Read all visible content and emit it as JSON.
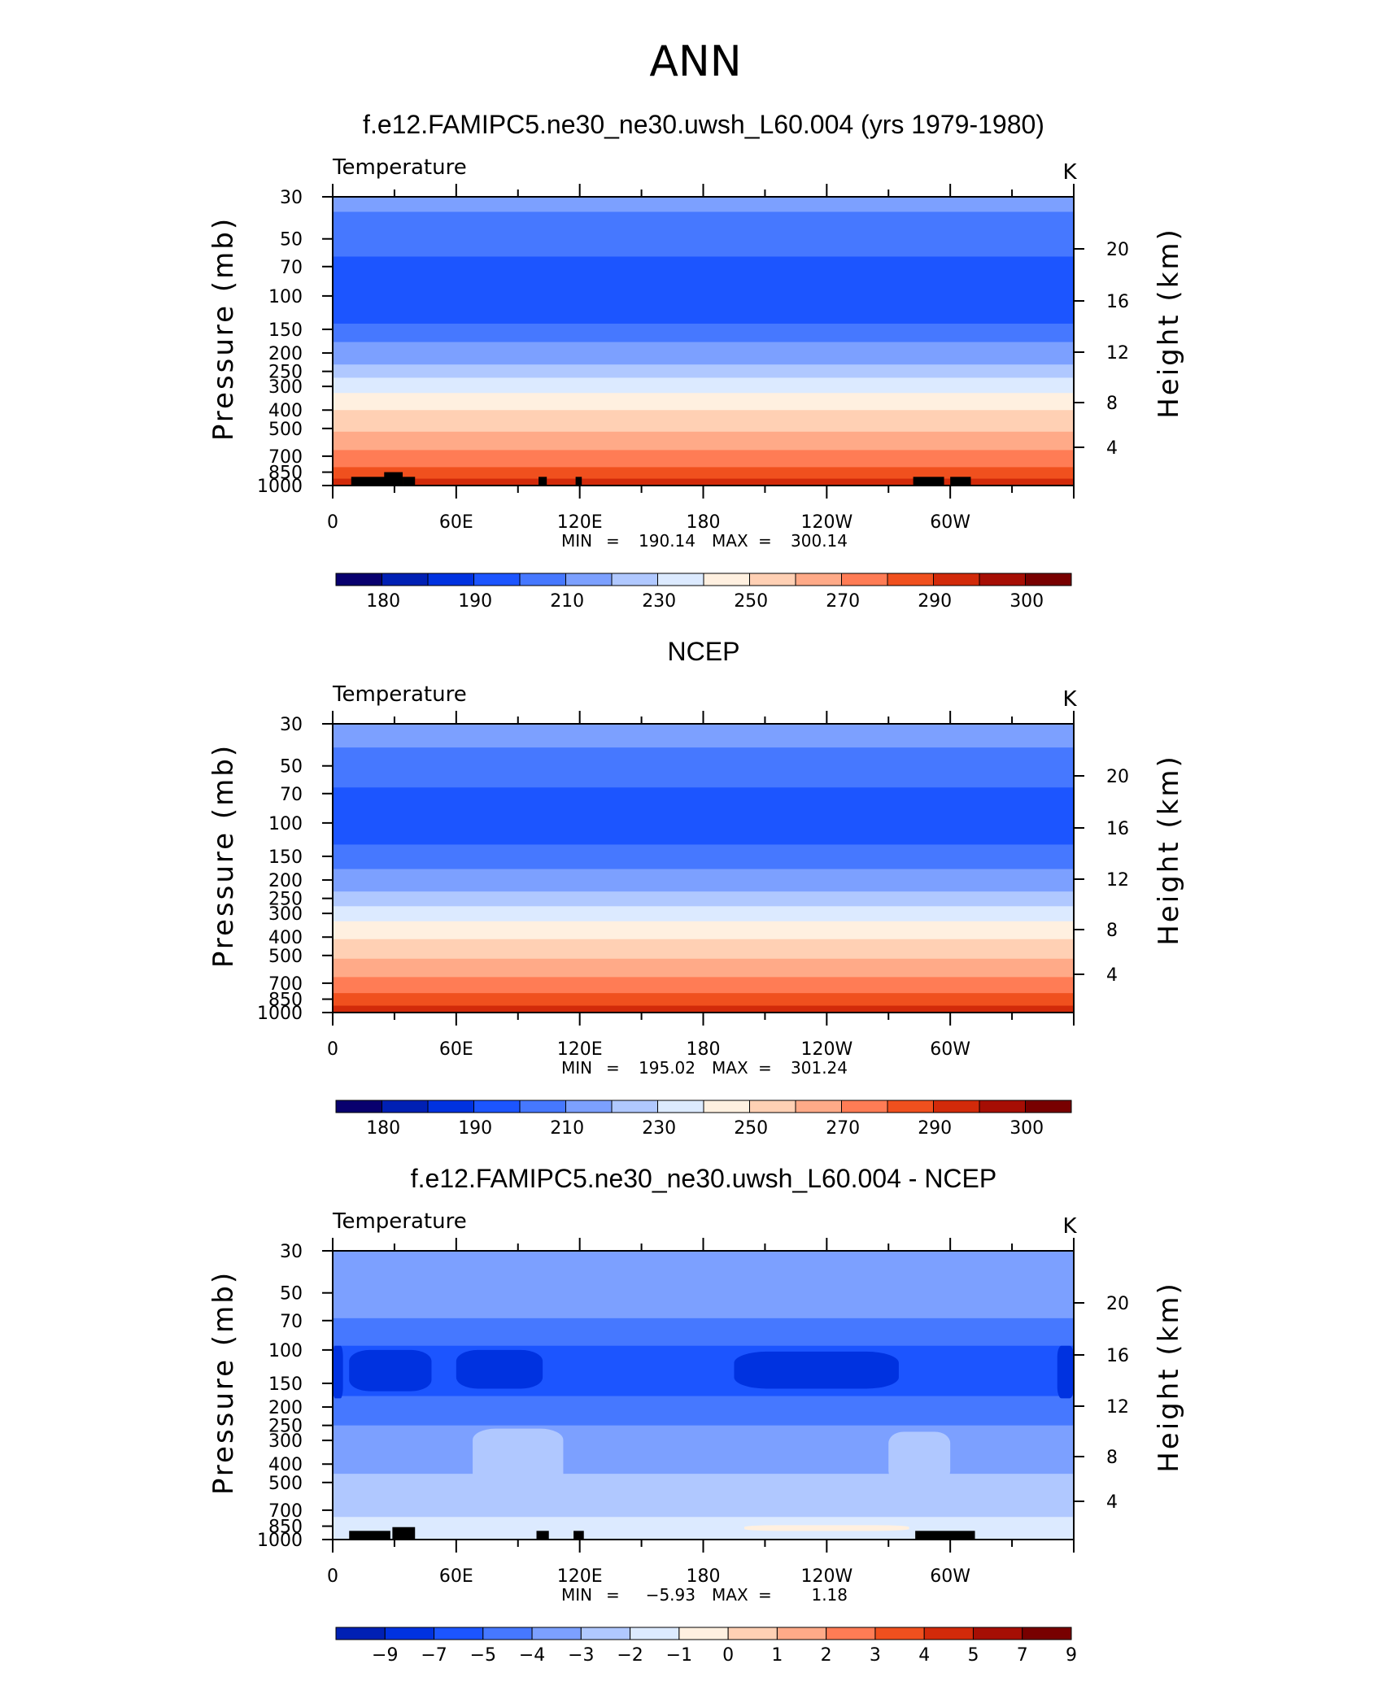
{
  "title": "ANN",
  "chart_data": [
    {
      "type": "heatmap",
      "title": "f.e12.FAMIPC5.ne30_ne30.uwsh_L60.004 (yrs 1979-1980)",
      "variable": "Temperature",
      "units": "K",
      "xlabel": "",
      "ylabel": "Pressure (mb)",
      "ylabel_right": "Height (km)",
      "x_tick_labels": [
        "0",
        "60E",
        "120E",
        "180",
        "120W",
        "60W"
      ],
      "y_tick_labels": [
        "30",
        "50",
        "70",
        "100",
        "150",
        "200",
        "250",
        "300",
        "400",
        "500",
        "700",
        "850",
        "1000"
      ],
      "y_right_tick_labels": [
        "20",
        "16",
        "12",
        "8",
        "4"
      ],
      "y_scale": "log",
      "stats": {
        "min_label": "MIN",
        "min": "190.14",
        "max_label": "MAX",
        "max": "300.14"
      },
      "levels": [
        "180",
        "190",
        "210",
        "230",
        "250",
        "270",
        "290",
        "300"
      ],
      "colorbar_colors": [
        "#08006e",
        "#0020b4",
        "#0032e0",
        "#1c55ff",
        "#4678ff",
        "#7ca0ff",
        "#b0c8ff",
        "#dceaff",
        "#fff0e0",
        "#ffd0b4",
        "#ffaa88",
        "#ff7c55",
        "#f0501e",
        "#d22a0a",
        "#a60e04",
        "#780000"
      ],
      "colorbar_first_index": 0,
      "layers": [
        {
          "top": 30,
          "bottom": 36,
          "color": "#7ca0ff"
        },
        {
          "top": 36,
          "bottom": 62,
          "color": "#4678ff"
        },
        {
          "top": 62,
          "bottom": 140,
          "color": "#1c55ff"
        },
        {
          "top": 140,
          "bottom": 175,
          "color": "#4678ff"
        },
        {
          "top": 175,
          "bottom": 230,
          "color": "#7ca0ff"
        },
        {
          "top": 230,
          "bottom": 270,
          "color": "#b0c8ff"
        },
        {
          "top": 270,
          "bottom": 325,
          "color": "#dceaff"
        },
        {
          "top": 325,
          "bottom": 400,
          "color": "#fff0e0"
        },
        {
          "top": 400,
          "bottom": 520,
          "color": "#ffd0b4"
        },
        {
          "top": 520,
          "bottom": 650,
          "color": "#ffaa88"
        },
        {
          "top": 650,
          "bottom": 800,
          "color": "#ff7c55"
        },
        {
          "top": 800,
          "bottom": 920,
          "color": "#f0501e"
        },
        {
          "top": 920,
          "bottom": 1000,
          "color": "#d22a0a"
        }
      ],
      "anomalies": [],
      "topography": [
        {
          "lon": [
            9,
            27
          ],
          "p": 900
        },
        {
          "lon": [
            25,
            34
          ],
          "p": 850
        },
        {
          "lon": [
            34,
            40
          ],
          "p": 900
        },
        {
          "lon": [
            100,
            104
          ],
          "p": 900
        },
        {
          "lon": [
            118,
            121
          ],
          "p": 900
        },
        {
          "lon": [
            282,
            297
          ],
          "p": 900
        },
        {
          "lon": [
            300,
            310
          ],
          "p": 900
        }
      ]
    },
    {
      "type": "heatmap",
      "title": "NCEP",
      "variable": "Temperature",
      "units": "K",
      "xlabel": "",
      "ylabel": "Pressure (mb)",
      "ylabel_right": "Height (km)",
      "x_tick_labels": [
        "0",
        "60E",
        "120E",
        "180",
        "120W",
        "60W"
      ],
      "y_tick_labels": [
        "30",
        "50",
        "70",
        "100",
        "150",
        "200",
        "250",
        "300",
        "400",
        "500",
        "700",
        "850",
        "1000"
      ],
      "y_right_tick_labels": [
        "20",
        "16",
        "12",
        "8",
        "4"
      ],
      "y_scale": "log",
      "stats": {
        "min_label": "MIN",
        "min": "195.02",
        "max_label": "MAX",
        "max": "301.24"
      },
      "levels": [
        "180",
        "190",
        "210",
        "230",
        "250",
        "270",
        "290",
        "300"
      ],
      "colorbar_colors": [
        "#08006e",
        "#0020b4",
        "#0032e0",
        "#1c55ff",
        "#4678ff",
        "#7ca0ff",
        "#b0c8ff",
        "#dceaff",
        "#fff0e0",
        "#ffd0b4",
        "#ffaa88",
        "#ff7c55",
        "#f0501e",
        "#d22a0a",
        "#a60e04",
        "#780000"
      ],
      "colorbar_first_index": 0,
      "layers": [
        {
          "top": 30,
          "bottom": 40,
          "color": "#7ca0ff"
        },
        {
          "top": 40,
          "bottom": 65,
          "color": "#4678ff"
        },
        {
          "top": 65,
          "bottom": 130,
          "color": "#1c55ff"
        },
        {
          "top": 130,
          "bottom": 175,
          "color": "#4678ff"
        },
        {
          "top": 175,
          "bottom": 230,
          "color": "#7ca0ff"
        },
        {
          "top": 230,
          "bottom": 275,
          "color": "#b0c8ff"
        },
        {
          "top": 275,
          "bottom": 330,
          "color": "#dceaff"
        },
        {
          "top": 330,
          "bottom": 410,
          "color": "#fff0e0"
        },
        {
          "top": 410,
          "bottom": 520,
          "color": "#ffd0b4"
        },
        {
          "top": 520,
          "bottom": 650,
          "color": "#ffaa88"
        },
        {
          "top": 650,
          "bottom": 790,
          "color": "#ff7c55"
        },
        {
          "top": 790,
          "bottom": 920,
          "color": "#f0501e"
        },
        {
          "top": 920,
          "bottom": 1000,
          "color": "#d22a0a"
        }
      ],
      "anomalies": [],
      "topography": []
    },
    {
      "type": "heatmap",
      "title": "f.e12.FAMIPC5.ne30_ne30.uwsh_L60.004 - NCEP",
      "variable": "Temperature",
      "units": "K",
      "xlabel": "",
      "ylabel": "Pressure (mb)",
      "ylabel_right": "Height (km)",
      "x_tick_labels": [
        "0",
        "60E",
        "120E",
        "180",
        "120W",
        "60W"
      ],
      "y_tick_labels": [
        "30",
        "50",
        "70",
        "100",
        "150",
        "200",
        "250",
        "300",
        "400",
        "500",
        "700",
        "850",
        "1000"
      ],
      "y_right_tick_labels": [
        "20",
        "16",
        "12",
        "8",
        "4"
      ],
      "y_scale": "log",
      "stats": {
        "min_label": "MIN",
        "min": "−5.93",
        "max_label": "MAX",
        "max": "1.18"
      },
      "levels": [
        "−9",
        "−7",
        "−5",
        "−4",
        "−3",
        "−2",
        "−1",
        "0",
        "1",
        "2",
        "3",
        "4",
        "5",
        "7",
        "9"
      ],
      "colorbar_colors": [
        "#08006e",
        "#0020b4",
        "#0032e0",
        "#1c55ff",
        "#4678ff",
        "#7ca0ff",
        "#b0c8ff",
        "#dceaff",
        "#fff0e0",
        "#ffd0b4",
        "#ffaa88",
        "#ff7c55",
        "#f0501e",
        "#d22a0a",
        "#a60e04",
        "#780000"
      ],
      "colorbar_first_index": 1,
      "layers": [
        {
          "top": 30,
          "bottom": 68,
          "color": "#7ca0ff"
        },
        {
          "top": 68,
          "bottom": 95,
          "color": "#4678ff"
        },
        {
          "top": 95,
          "bottom": 175,
          "color": "#1c55ff"
        },
        {
          "top": 175,
          "bottom": 250,
          "color": "#4678ff"
        },
        {
          "top": 250,
          "bottom": 450,
          "color": "#7ca0ff"
        },
        {
          "top": 450,
          "bottom": 760,
          "color": "#b0c8ff"
        },
        {
          "top": 760,
          "bottom": 1000,
          "color": "#dceaff"
        }
      ],
      "anomalies": [
        {
          "lon": [
            8,
            48
          ],
          "p": [
            100,
            165
          ],
          "color": "#0032e0"
        },
        {
          "lon": [
            60,
            102
          ],
          "p": [
            100,
            160
          ],
          "color": "#0032e0"
        },
        {
          "lon": [
            195,
            275
          ],
          "p": [
            102,
            160
          ],
          "color": "#0032e0"
        },
        {
          "lon": [
            0,
            5
          ],
          "p": [
            95,
            180
          ],
          "color": "#0032e0"
        },
        {
          "lon": [
            352,
            360
          ],
          "p": [
            95,
            180
          ],
          "color": "#0032e0"
        },
        {
          "lon": [
            68,
            112
          ],
          "p": [
            260,
            520
          ],
          "color": "#b0c8ff"
        },
        {
          "lon": [
            270,
            300
          ],
          "p": [
            270,
            500
          ],
          "color": "#b0c8ff"
        },
        {
          "lon": [
            200,
            280
          ],
          "p": [
            840,
            900
          ],
          "color": "#fff0e0"
        }
      ],
      "topography": [
        {
          "lon": [
            8,
            28
          ],
          "p": 900
        },
        {
          "lon": [
            29,
            40
          ],
          "p": 860
        },
        {
          "lon": [
            99,
            105
          ],
          "p": 900
        },
        {
          "lon": [
            117,
            122
          ],
          "p": 900
        },
        {
          "lon": [
            283,
            312
          ],
          "p": 900
        }
      ]
    }
  ]
}
